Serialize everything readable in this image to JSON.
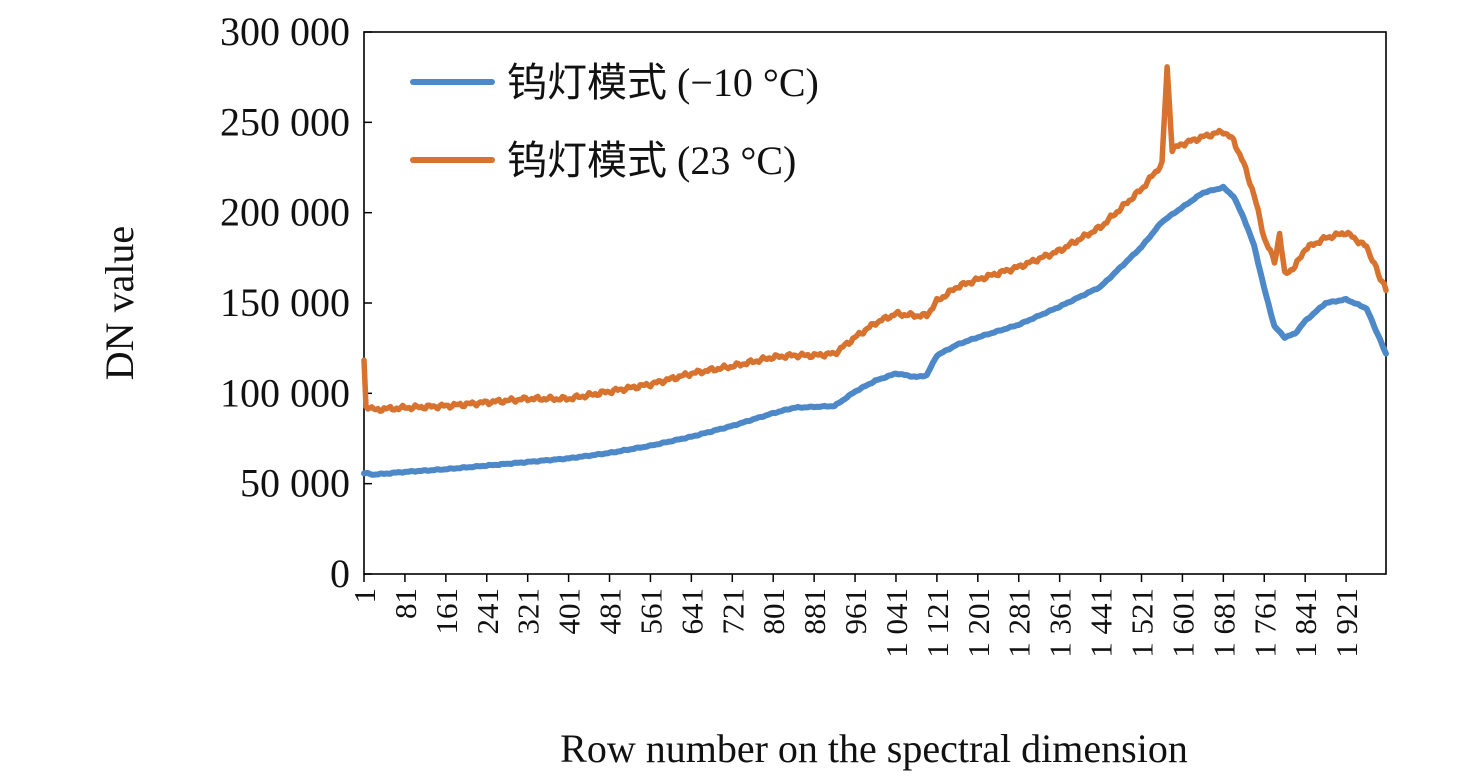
{
  "chart_data": {
    "type": "line",
    "xlabel": "Row number on the spectral dimension",
    "ylabel": "DN value",
    "ylim": [
      0,
      300000
    ],
    "xlim": [
      1,
      1999
    ],
    "yticks": [
      {
        "value": 0,
        "label": "0"
      },
      {
        "value": 50000,
        "label": "50 000"
      },
      {
        "value": 100000,
        "label": "100 000"
      },
      {
        "value": 150000,
        "label": "150 000"
      },
      {
        "value": 200000,
        "label": "200 000"
      },
      {
        "value": 250000,
        "label": "250 000"
      },
      {
        "value": 300000,
        "label": "300 000"
      }
    ],
    "xticks": [
      {
        "value": 1,
        "label": "1"
      },
      {
        "value": 81,
        "label": "81"
      },
      {
        "value": 161,
        "label": "161"
      },
      {
        "value": 241,
        "label": "241"
      },
      {
        "value": 321,
        "label": "321"
      },
      {
        "value": 401,
        "label": "401"
      },
      {
        "value": 481,
        "label": "481"
      },
      {
        "value": 561,
        "label": "561"
      },
      {
        "value": 641,
        "label": "641"
      },
      {
        "value": 721,
        "label": "721"
      },
      {
        "value": 801,
        "label": "801"
      },
      {
        "value": 881,
        "label": "881"
      },
      {
        "value": 961,
        "label": "961"
      },
      {
        "value": 1041,
        "label": "1 041"
      },
      {
        "value": 1121,
        "label": "1 121"
      },
      {
        "value": 1201,
        "label": "1 201"
      },
      {
        "value": 1281,
        "label": "1 281"
      },
      {
        "value": 1361,
        "label": "1 361"
      },
      {
        "value": 1441,
        "label": "1 441"
      },
      {
        "value": 1521,
        "label": "1 521"
      },
      {
        "value": 1601,
        "label": "1 601"
      },
      {
        "value": 1681,
        "label": "1 681"
      },
      {
        "value": 1761,
        "label": "1 761"
      },
      {
        "value": 1841,
        "label": "1 841"
      },
      {
        "value": 1921,
        "label": "1 921"
      }
    ],
    "legend_position": "top-left",
    "grid": false,
    "series": [
      {
        "name": "钨灯模式 (−10 °C)",
        "color": "#4d88c8",
        "x": [
          1,
          20,
          81,
          161,
          241,
          321,
          401,
          481,
          561,
          641,
          721,
          801,
          841,
          881,
          921,
          961,
          1001,
          1041,
          1081,
          1101,
          1121,
          1161,
          1201,
          1281,
          1361,
          1441,
          1521,
          1561,
          1601,
          1641,
          1681,
          1701,
          1721,
          1741,
          1761,
          1781,
          1801,
          1821,
          1841,
          1881,
          1921,
          1961,
          1999
        ],
        "y": [
          56000,
          55000,
          56500,
          58000,
          60000,
          62000,
          64000,
          67000,
          71000,
          76000,
          82000,
          89000,
          92000,
          92500,
          93000,
          101000,
          107000,
          111000,
          109000,
          110000,
          121000,
          127000,
          131000,
          138000,
          148000,
          159000,
          181000,
          195000,
          203000,
          211000,
          214000,
          209000,
          197000,
          182000,
          158000,
          137000,
          131000,
          133000,
          140000,
          150000,
          152000,
          147000,
          122000
        ]
      },
      {
        "name": "钨灯模式 (23 °C)",
        "color": "#d8722f",
        "x": [
          1,
          5,
          20,
          81,
          161,
          241,
          321,
          401,
          481,
          561,
          641,
          721,
          801,
          841,
          881,
          921,
          961,
          1001,
          1041,
          1081,
          1101,
          1121,
          1161,
          1201,
          1281,
          1361,
          1441,
          1521,
          1561,
          1571,
          1581,
          1601,
          1641,
          1681,
          1701,
          1721,
          1741,
          1761,
          1781,
          1791,
          1801,
          1821,
          1841,
          1881,
          1921,
          1961,
          1999
        ],
        "y": [
          117000,
          93000,
          91000,
          92000,
          93000,
          95000,
          97000,
          97000,
          101000,
          105000,
          111000,
          115000,
          120000,
          121000,
          121000,
          122000,
          131000,
          139000,
          144000,
          143000,
          143000,
          151000,
          159000,
          163000,
          170000,
          179000,
          192000,
          213000,
          227000,
          281000,
          235000,
          238000,
          242000,
          245000,
          240000,
          227000,
          210000,
          186000,
          173000,
          188000,
          166000,
          170000,
          180000,
          186000,
          189000,
          181000,
          157000
        ]
      }
    ]
  }
}
